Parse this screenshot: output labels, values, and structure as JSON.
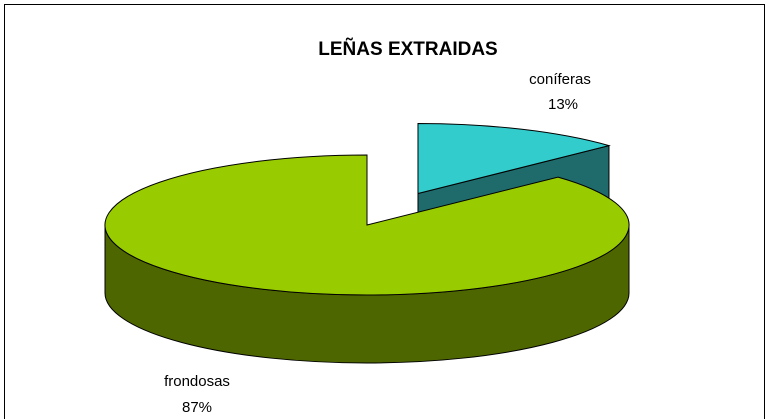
{
  "chart_data": {
    "type": "pie",
    "title": "LEÑAS EXTRAIDAS",
    "categories": [
      "coníferas",
      "frondosas"
    ],
    "values": [
      13,
      87
    ],
    "value_labels": [
      "13%",
      "87%"
    ],
    "colors": [
      "#33CCCC",
      "#99CC00"
    ],
    "side_colors": [
      "#1F6B6B",
      "#4D6600"
    ]
  }
}
